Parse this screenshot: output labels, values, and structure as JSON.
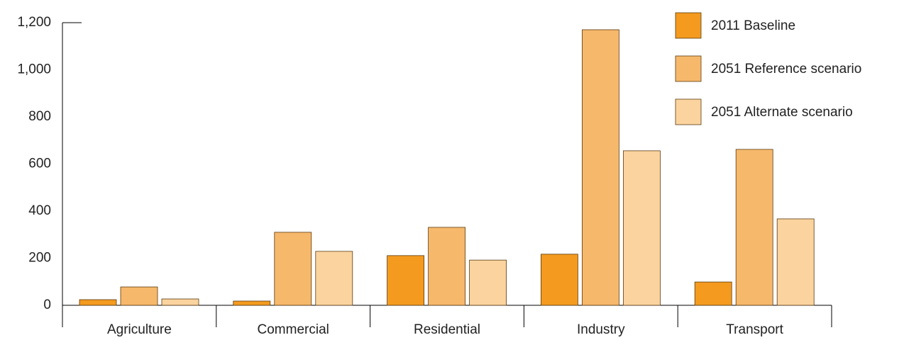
{
  "chart_data": {
    "type": "bar",
    "categories": [
      "Agriculture",
      "Commercial",
      "Residential",
      "Industry",
      "Transport"
    ],
    "series": [
      {
        "name": "2011 Baseline",
        "color": "#f39a1f",
        "values": [
          24,
          18,
          211,
          217,
          99
        ]
      },
      {
        "name": "2051 Reference scenario",
        "color": "#f6b86b",
        "values": [
          78,
          310,
          331,
          1170,
          662
        ]
      },
      {
        "name": "2051 Alternate scenario",
        "color": "#fad39f",
        "values": [
          27,
          229,
          192,
          656,
          367
        ]
      }
    ],
    "ylim": [
      0,
      1200
    ],
    "yticks": [
      0,
      200,
      400,
      600,
      800,
      {
        "value": 1000,
        "label": "1,000"
      },
      {
        "value": 1200,
        "label": "1,200"
      }
    ],
    "legend": "top-right"
  }
}
